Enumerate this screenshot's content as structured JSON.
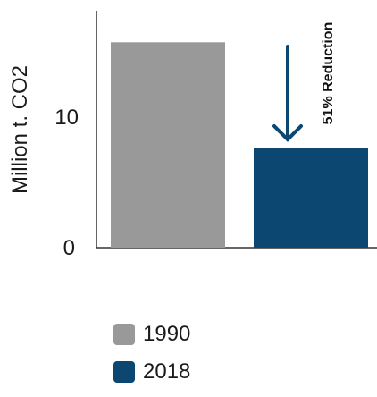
{
  "chart_data": {
    "type": "bar",
    "categories": [
      "1990",
      "2018"
    ],
    "values": [
      15.6,
      7.6
    ],
    "ylabel": "Million t. CO2",
    "ylim": [
      0,
      18
    ],
    "yticks": [
      0,
      10
    ],
    "colors": [
      "#999999",
      "#0b4770"
    ],
    "annotation": "51% Reduction",
    "legend_position": "bottom",
    "legend": [
      {
        "label": "1990",
        "color": "#999999"
      },
      {
        "label": "2018",
        "color": "#0b4770"
      }
    ]
  }
}
